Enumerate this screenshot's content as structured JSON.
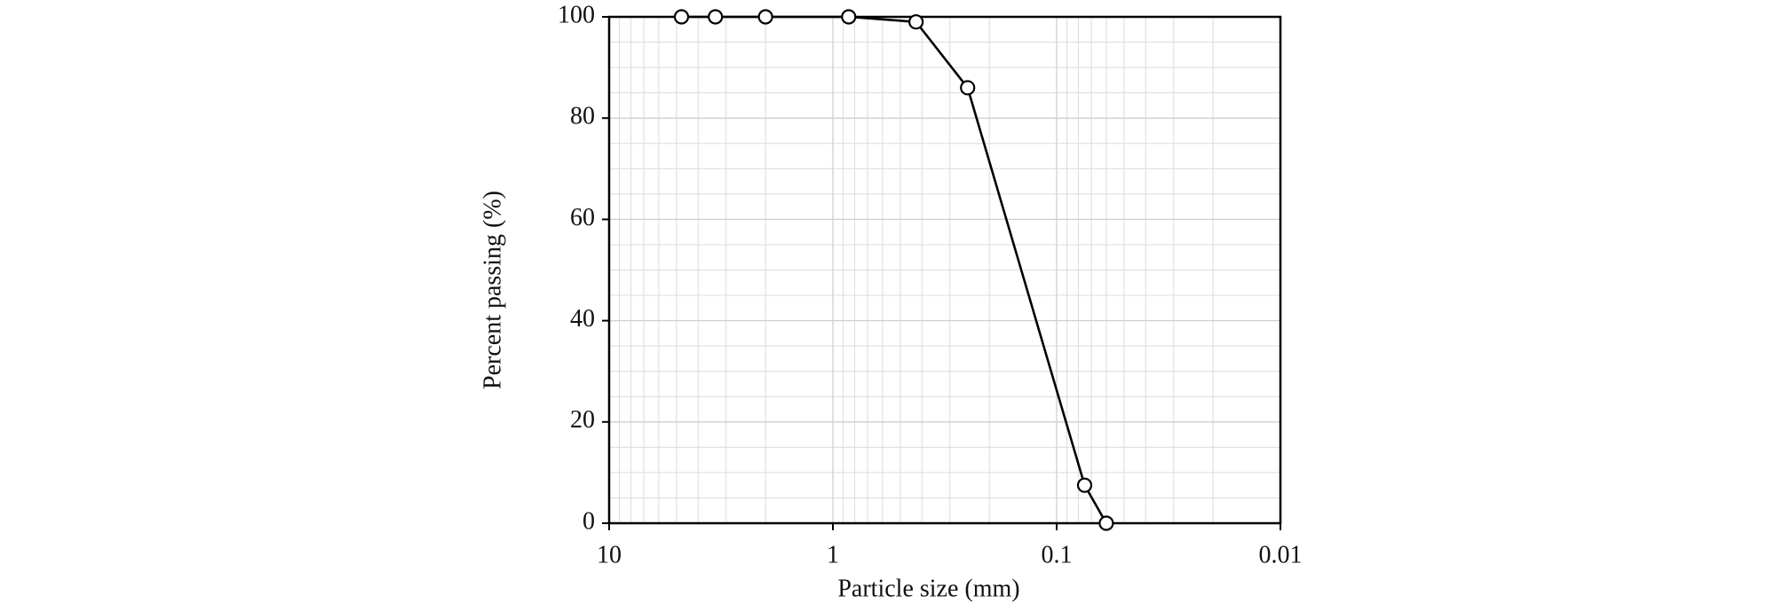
{
  "chart_data": {
    "type": "line",
    "x_label": "Particle size (mm)",
    "y_label": "Percent passing (%)",
    "x": [
      4.75,
      3.35,
      2,
      0.85,
      0.425,
      0.25,
      0.075,
      0.06
    ],
    "values": [
      100,
      100,
      100,
      100,
      99,
      86,
      7.5,
      0
    ],
    "color": "#000000",
    "xlim": [
      10,
      0.01
    ],
    "xticks": [
      10,
      1,
      0.1,
      0.01
    ],
    "xscale": "log",
    "ylim": [
      0,
      100
    ],
    "yticks": [
      0,
      20,
      40,
      60,
      80,
      100
    ],
    "grid": true
  }
}
